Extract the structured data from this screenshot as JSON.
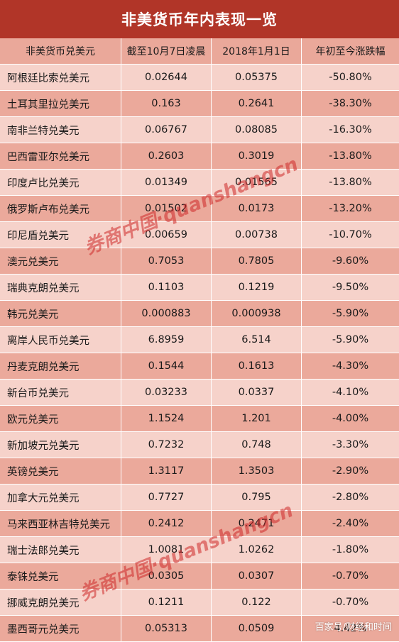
{
  "title": "非美货币年内表现一览",
  "table": {
    "headers": [
      "非美货币兑美元",
      "截至10月7日凌晨",
      "2018年1月1日",
      "年初至今涨跌幅"
    ],
    "rows": [
      [
        "阿根廷比索兑美元",
        "0.02644",
        "0.05375",
        "-50.80%"
      ],
      [
        "土耳其里拉兑美元",
        "0.163",
        "0.2641",
        "-38.30%"
      ],
      [
        "南非兰特兑美元",
        "0.06767",
        "0.08085",
        "-16.30%"
      ],
      [
        "巴西雷亚尔兑美元",
        "0.2603",
        "0.3019",
        "-13.80%"
      ],
      [
        "印度卢比兑美元",
        "0.01349",
        "0.01565",
        "-13.80%"
      ],
      [
        "俄罗斯卢布兑美元",
        "0.01502",
        "0.0173",
        "-13.20%"
      ],
      [
        "印尼盾兑美元",
        "0.00659",
        "0.00738",
        "-10.70%"
      ],
      [
        "澳元兑美元",
        "0.7053",
        "0.7805",
        "-9.60%"
      ],
      [
        "瑞典克朗兑美元",
        "0.1103",
        "0.1219",
        "-9.50%"
      ],
      [
        "韩元兑美元",
        "0.000883",
        "0.000938",
        "-5.90%"
      ],
      [
        "离岸人民币兑美元",
        "6.8959",
        "6.514",
        "-5.90%"
      ],
      [
        "丹麦克朗兑美元",
        "0.1544",
        "0.1613",
        "-4.30%"
      ],
      [
        "新台币兑美元",
        "0.03233",
        "0.0337",
        "-4.10%"
      ],
      [
        "欧元兑美元",
        "1.1524",
        "1.201",
        "-4.00%"
      ],
      [
        "新加坡元兑美元",
        "0.7232",
        "0.748",
        "-3.30%"
      ],
      [
        "英镑兑美元",
        "1.3117",
        "1.3503",
        "-2.90%"
      ],
      [
        "加拿大元兑美元",
        "0.7727",
        "0.795",
        "-2.80%"
      ],
      [
        "马来西亚林吉特兑美元",
        "0.2412",
        "0.2471",
        "-2.40%"
      ],
      [
        "瑞士法郎兑美元",
        "1.0081",
        "1.0262",
        "-1.80%"
      ],
      [
        "泰铢兑美元",
        "0.0305",
        "0.0307",
        "-0.70%"
      ],
      [
        "挪威克朗兑美元",
        "0.1211",
        "0.122",
        "-0.70%"
      ],
      [
        "墨西哥元兑美元",
        "0.05313",
        "0.0509",
        "4.42%"
      ]
    ]
  },
  "watermark_text": "券商中国·quanshangcn",
  "corner_credit": "百家号/财经和时间",
  "colors": {
    "title_bg": "#b13528",
    "header_bg": "#eaa89a",
    "row_light": "#f6d2ca",
    "row_dark": "#eba99b",
    "watermark": "#cd2828"
  }
}
